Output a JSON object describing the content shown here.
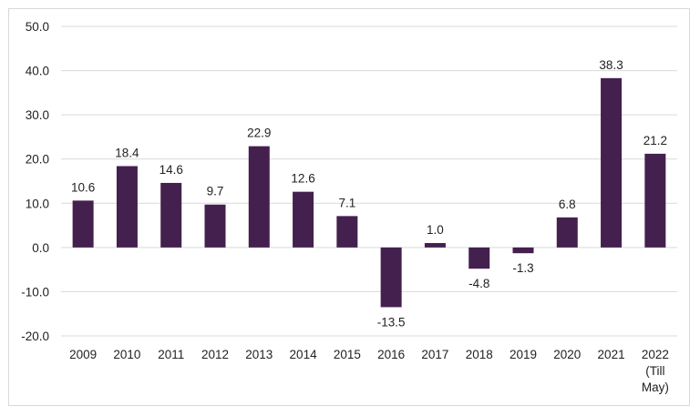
{
  "chart_data": {
    "type": "bar",
    "categories": [
      "2009",
      "2010",
      "2011",
      "2012",
      "2013",
      "2014",
      "2015",
      "2016",
      "2017",
      "2018",
      "2019",
      "2020",
      "2021",
      "2022\n(Till\nMay)"
    ],
    "values": [
      10.6,
      18.4,
      14.6,
      9.7,
      22.9,
      12.6,
      7.1,
      -13.5,
      1.0,
      -4.8,
      -1.3,
      6.8,
      38.3,
      21.2
    ],
    "value_labels": [
      "10.6",
      "18.4",
      "14.6",
      "9.7",
      "22.9",
      "12.6",
      "7.1",
      "-13.5",
      "1.0",
      "-4.8",
      "-1.3",
      "6.8",
      "38.3",
      "21.2"
    ],
    "yticks": [
      "50.0",
      "40.0",
      "30.0",
      "20.0",
      "10.0",
      "0.0",
      "-10.0",
      "-20.0"
    ],
    "ylim": [
      -20,
      50
    ],
    "title": "",
    "xlabel": "",
    "ylabel": "",
    "grid": true,
    "bar_color": "#44204e"
  }
}
